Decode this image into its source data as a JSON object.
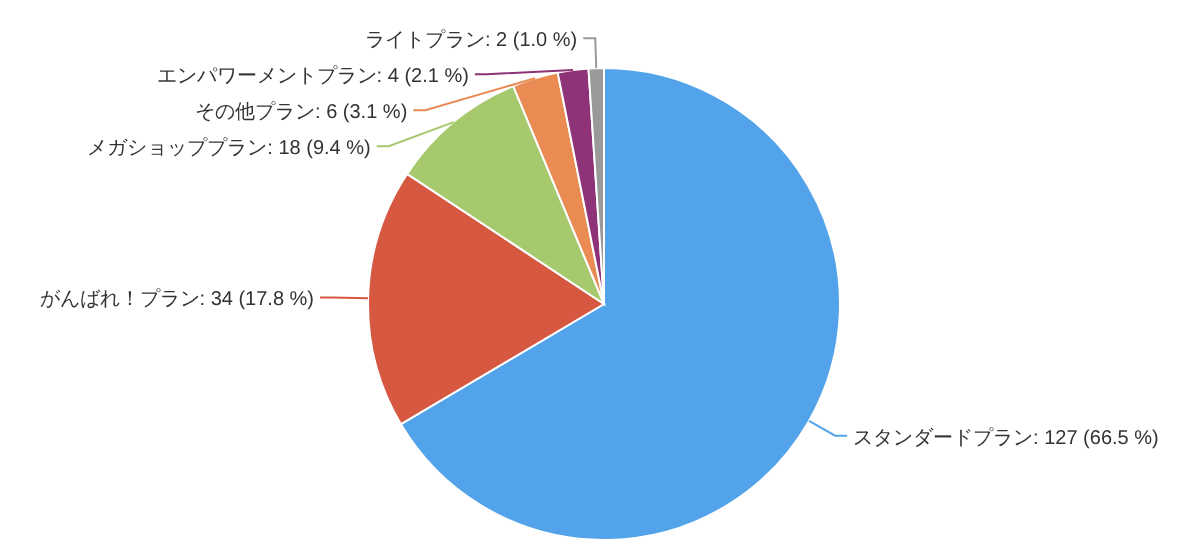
{
  "chart_data": {
    "type": "pie",
    "categories": [
      "スタンダードプラン",
      "がんばれ！プラン",
      "メガショッププラン",
      "その他プラン",
      "エンパワーメントプラン",
      "ライトプラン"
    ],
    "values": [
      127,
      34,
      18,
      6,
      4,
      2
    ],
    "value_labels": [
      "127 (66.5 %)",
      "34 (17.8 %)",
      "18 (9.4 %)",
      "6 (3.1 %)",
      "4 (2.1 %)",
      "2 (1.0 %)"
    ],
    "colors": [
      "#52a3ea",
      "#d65841",
      "#a6c96d",
      "#e98b53",
      "#8e3377",
      "#999999"
    ]
  }
}
